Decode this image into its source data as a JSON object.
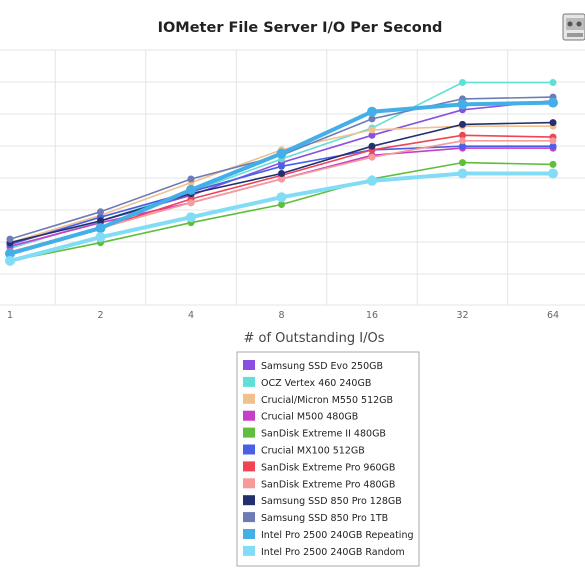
{
  "chart_data": {
    "type": "line",
    "title": "IOMeter File Server I/O Per Second",
    "xlabel": "# of Outstanding I/Os",
    "ylabel": "",
    "x": [
      "1",
      "2",
      "4",
      "8",
      "16",
      "32",
      "64"
    ],
    "ylim": [
      0,
      100
    ],
    "grid": true,
    "legend_position": "bottom",
    "series": [
      {
        "name": "Samsung SSD Evo 250GB",
        "color": "#8a4fe0",
        "values": [
          12,
          27,
          41,
          59,
          74,
          88,
          93
        ]
      },
      {
        "name": "OCZ Vertex 460 240GB",
        "color": "#5fe0d6",
        "values": [
          12,
          27,
          43,
          61,
          78,
          103,
          103
        ]
      },
      {
        "name": "Crucial/Micron M550 512GB",
        "color": "#f0c08e",
        "values": [
          15,
          30,
          48,
          66,
          77,
          79,
          79
        ]
      },
      {
        "name": "Crucial M500 480GB",
        "color": "#c63fc8",
        "values": [
          13,
          26,
          37,
          50,
          63,
          67,
          67
        ]
      },
      {
        "name": "SanDisk Extreme II 480GB",
        "color": "#5fbe3c",
        "values": [
          5,
          15,
          26,
          36,
          50,
          59,
          58
        ]
      },
      {
        "name": "Crucial MX100 512GB",
        "color": "#4b5fe6",
        "values": [
          14,
          29,
          43,
          57,
          66,
          68,
          68
        ]
      },
      {
        "name": "SanDisk Extreme Pro 960GB",
        "color": "#ee4455",
        "values": [
          9,
          23,
          39,
          52,
          66,
          74,
          73
        ]
      },
      {
        "name": "SanDisk Extreme Pro 480GB",
        "color": "#f79a9a",
        "values": [
          10,
          23,
          37,
          50,
          62,
          71,
          71
        ]
      },
      {
        "name": "Samsung SSD 850 Pro 128GB",
        "color": "#24306e",
        "values": [
          15,
          27,
          42,
          53,
          68,
          80,
          81
        ]
      },
      {
        "name": "Samsung SSD 850 Pro 1TB",
        "color": "#6b7cb6",
        "values": [
          17,
          32,
          50,
          63,
          83,
          94,
          95
        ]
      },
      {
        "name": "Intel Pro 2500 240GB Repeating",
        "color": "#44aee6",
        "values": [
          9,
          23,
          44,
          64,
          87,
          91,
          92
        ]
      },
      {
        "name": "Intel Pro 2500 240GB Random",
        "color": "#82dcf6",
        "values": [
          5,
          18,
          29,
          40,
          49,
          53,
          53
        ]
      }
    ]
  }
}
